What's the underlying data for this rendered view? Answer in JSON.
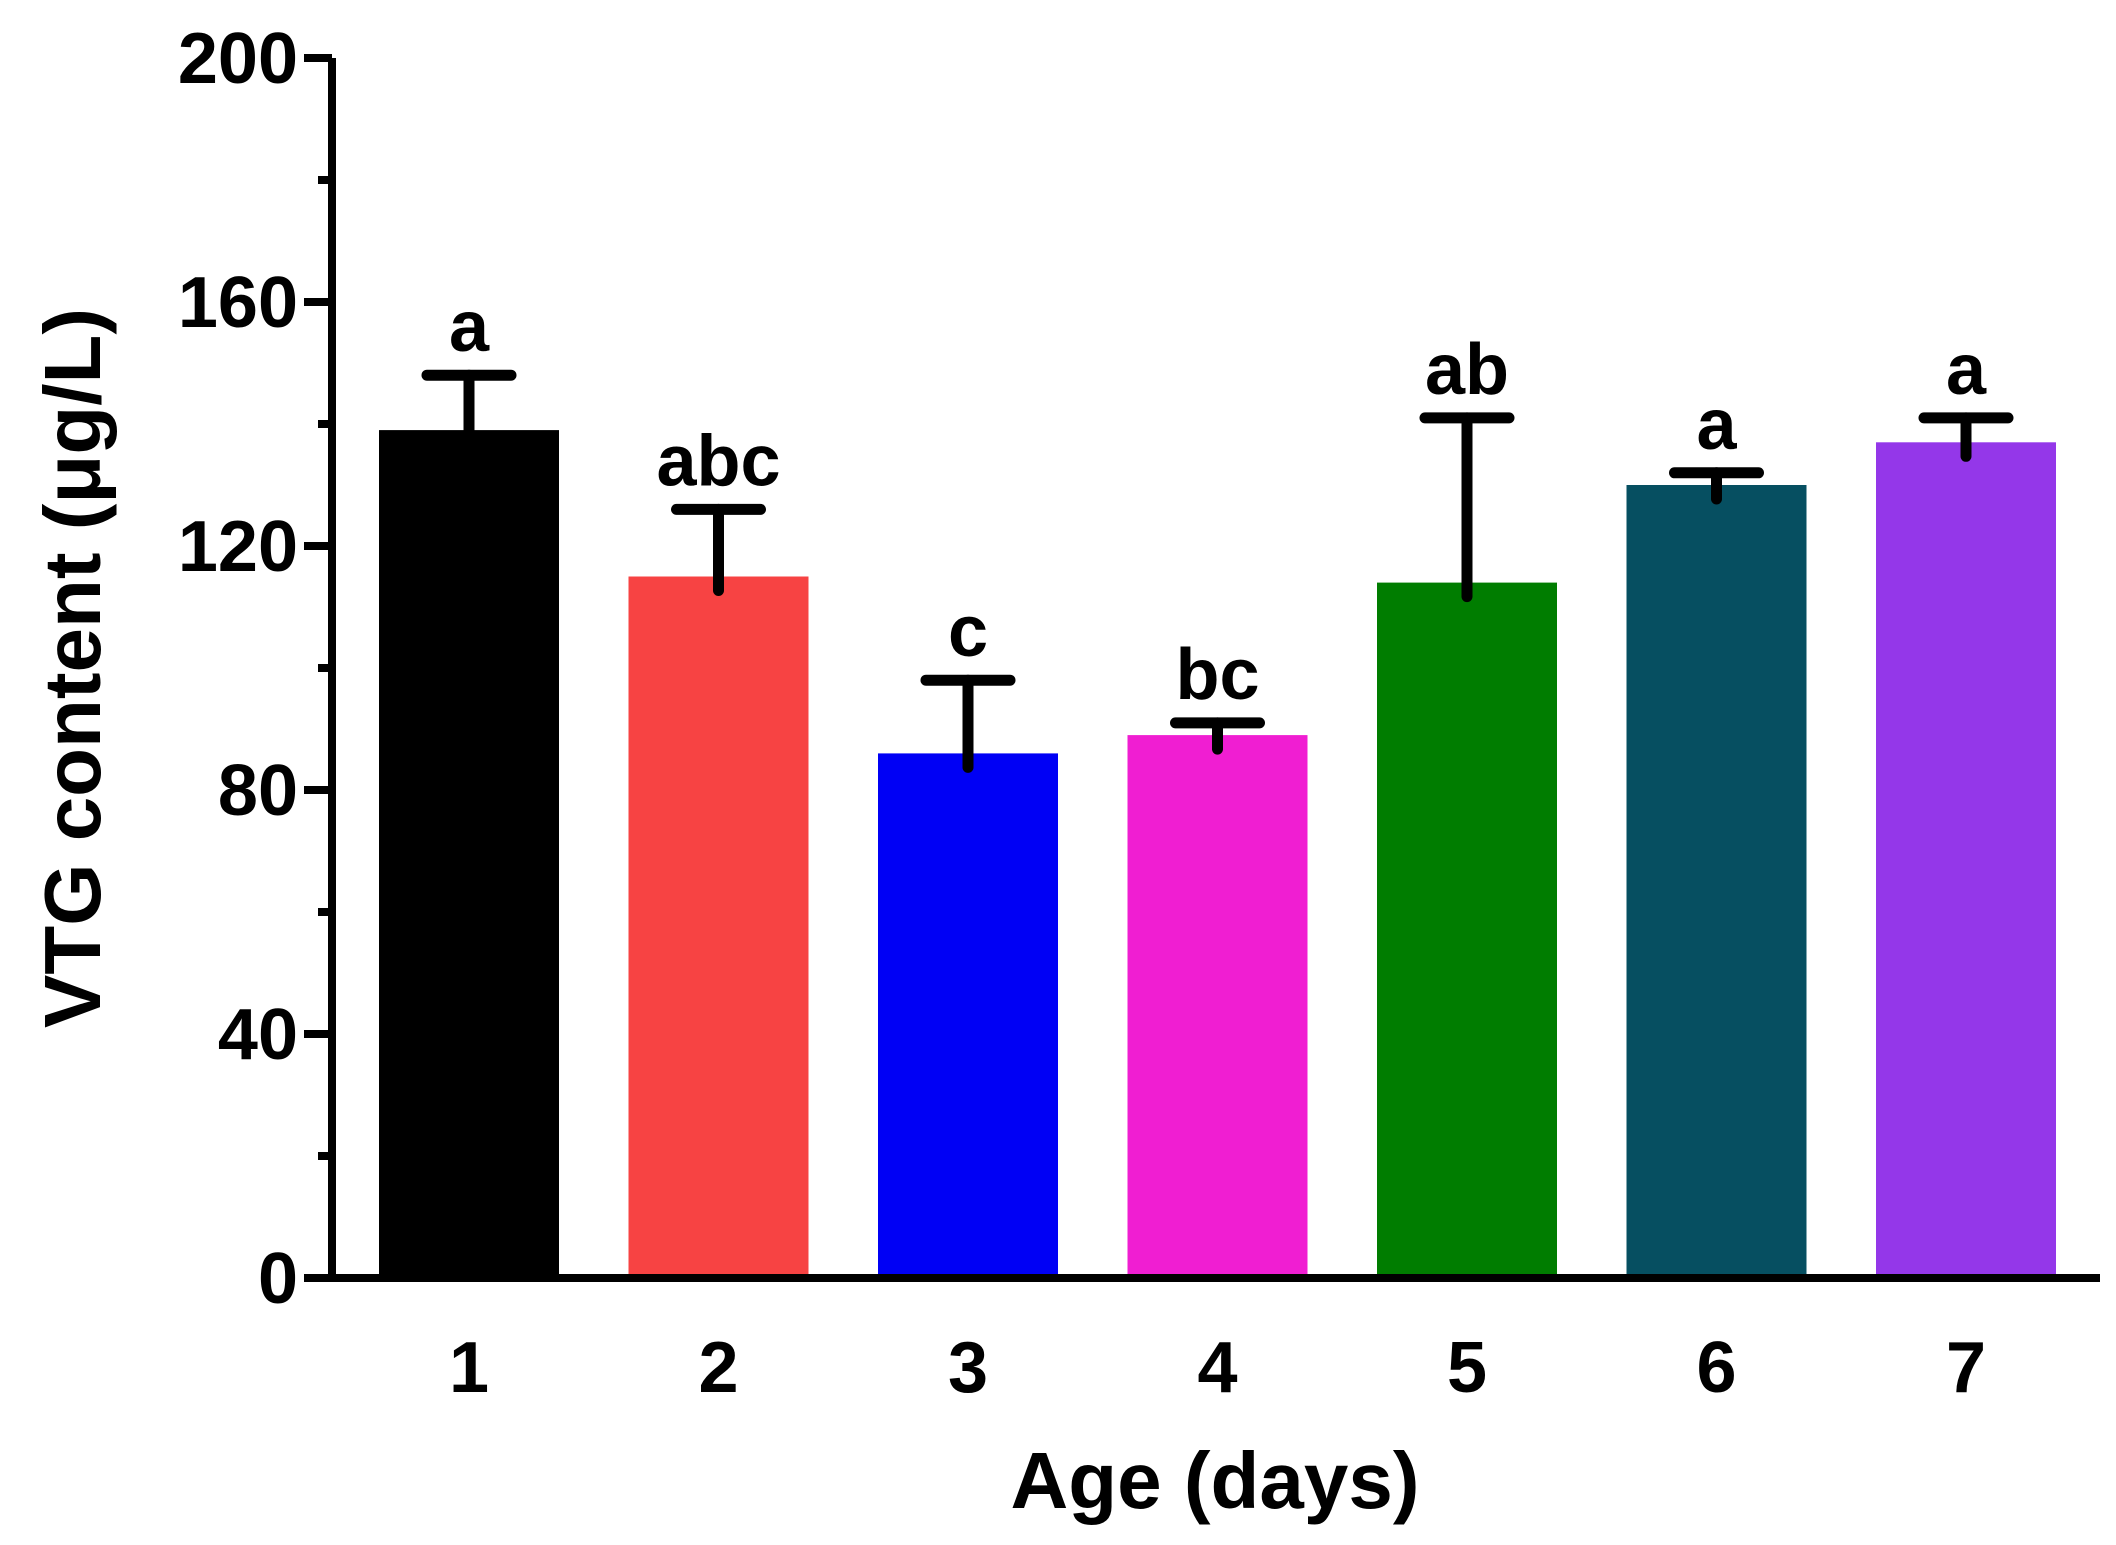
{
  "chart_data": {
    "type": "bar",
    "title": "",
    "xlabel": "Age (days)",
    "ylabel": "VTG content (μg/L)",
    "categories": [
      "1",
      "2",
      "3",
      "4",
      "5",
      "6",
      "7"
    ],
    "values": [
      139,
      115,
      86,
      89,
      114,
      130,
      137
    ],
    "error": [
      9,
      11,
      12,
      2,
      27,
      2,
      4
    ],
    "significance": [
      "a",
      "abc",
      "c",
      "bc",
      "ab",
      "a",
      "a"
    ],
    "colors": [
      "#000000",
      "#f74343",
      "#0000f5",
      "#f01ed2",
      "#007d00",
      "#064f61",
      "#9437e9"
    ],
    "ylim": [
      0,
      200
    ],
    "yticks": [
      0,
      40,
      80,
      120,
      160,
      200
    ],
    "ytick_labels": [
      "0",
      "40",
      "80",
      "120",
      "160",
      "200"
    ],
    "minor_ytick_step": 20,
    "grid": false,
    "legend": "none"
  }
}
